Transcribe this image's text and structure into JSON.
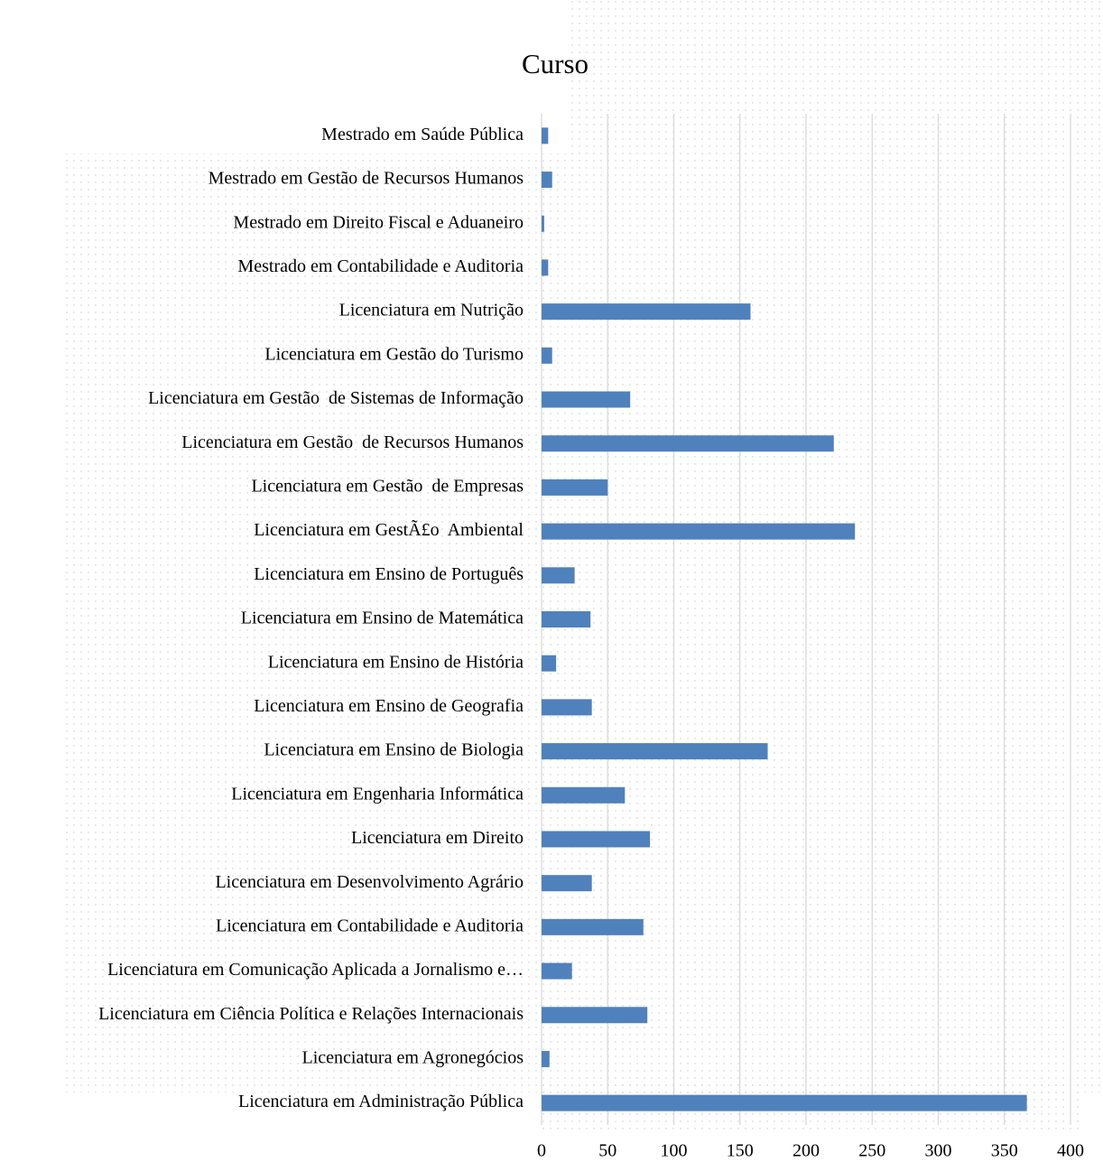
{
  "chart_data": {
    "type": "barh",
    "title": "Curso",
    "categories": [
      "Mestrado em Saúde Pública",
      "Mestrado em Gestão de Recursos Humanos",
      "Mestrado em Direito Fiscal e Aduaneiro",
      "Mestrado em Contabilidade e Auditoria",
      "Licenciatura em Nutrição",
      "Licenciatura em Gestão do Turismo",
      "Licenciatura em Gestão  de Sistemas de Informação",
      "Licenciatura em Gestão  de Recursos Humanos",
      "Licenciatura em Gestão  de Empresas",
      "Licenciatura em GestÃ£o  Ambiental",
      "Licenciatura em Ensino de Português",
      "Licenciatura em Ensino de Matemática",
      "Licenciatura em Ensino de História",
      "Licenciatura em Ensino de Geografia",
      "Licenciatura em Ensino de Biologia",
      "Licenciatura em Engenharia Informática",
      "Licenciatura em Direito",
      "Licenciatura em Desenvolvimento Agrário",
      "Licenciatura em Contabilidade e Auditoria",
      "Licenciatura em Comunicação Aplicada a Jornalismo e…",
      "Licenciatura em Ciência Política e Relações Internacionais",
      "Licenciatura em Agronegócios",
      "Licenciatura em Administração Pública"
    ],
    "values": [
      5,
      8,
      2,
      5,
      158,
      8,
      67,
      221,
      50,
      237,
      25,
      37,
      11,
      38,
      171,
      63,
      82,
      38,
      77,
      23,
      80,
      6,
      367
    ],
    "color": "#4f81bd",
    "xlim": [
      0,
      400
    ],
    "xticks": [
      0,
      50,
      100,
      150,
      200,
      250,
      300,
      350,
      400
    ],
    "grid": true
  }
}
